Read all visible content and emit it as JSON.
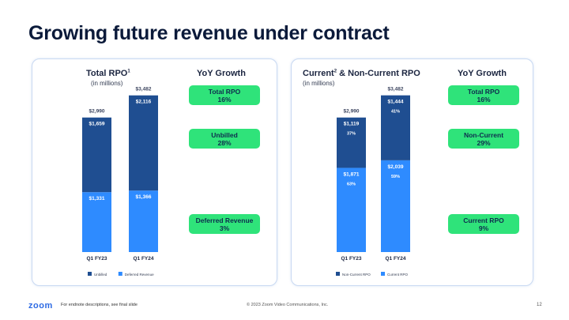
{
  "page": {
    "title": "Growing future revenue under contract",
    "footer_logo": "zoom",
    "footer_note": "For endnote descriptions, see final slide",
    "footer_copyright": "© 2023 Zoom Video Communications, Inc.",
    "page_number": "12"
  },
  "left_panel": {
    "title": "Total RPO",
    "title_sup": "1",
    "subtitle": "(in millions)",
    "yoy_heading": "YoY Growth",
    "pills": [
      {
        "label": "Total RPO",
        "value": "16%"
      },
      {
        "label": "Unbilled",
        "value": "28%"
      },
      {
        "label": "Deferred Revenue",
        "value": "3%"
      }
    ]
  },
  "right_panel": {
    "title_a": "Current",
    "title_sup": "2",
    "title_b": " & Non-Current RPO",
    "subtitle": "(in millions)",
    "yoy_heading": "YoY Growth",
    "pills": [
      {
        "label": "Total RPO",
        "value": "16%"
      },
      {
        "label": "Non-Current",
        "value": "29%"
      },
      {
        "label": "Current RPO",
        "value": "9%"
      }
    ]
  },
  "colors": {
    "dark": "#1f4e91",
    "light": "#2e8bff",
    "pill": "#2fe37a"
  },
  "chart_data": [
    {
      "type": "bar",
      "stacked": true,
      "categories": [
        "Q1 FY23",
        "Q1 FY24"
      ],
      "totals": [
        "$2,990",
        "$3,482"
      ],
      "series": [
        {
          "name": "Deferred Revenue",
          "values": [
            1331,
            1366
          ],
          "labels": [
            "$1,331",
            "$1,366"
          ],
          "color": "#2e8bff",
          "pct": [
            "",
            ""
          ]
        },
        {
          "name": "Unbilled",
          "values": [
            1659,
            2116
          ],
          "labels": [
            "$1,659",
            "$2,116"
          ],
          "color": "#1f4e91",
          "pct": [
            "",
            ""
          ]
        }
      ],
      "legend": "bottom",
      "ylim": [
        0,
        3600
      ]
    },
    {
      "type": "bar",
      "stacked": true,
      "categories": [
        "Q1 FY23",
        "Q1 FY24"
      ],
      "totals": [
        "$2,990",
        "$3,482"
      ],
      "series": [
        {
          "name": "Current RPO",
          "values": [
            1871,
            2039
          ],
          "labels": [
            "$1,871",
            "$2,039"
          ],
          "color": "#2e8bff",
          "pct": [
            "63%",
            "59%"
          ]
        },
        {
          "name": "Non-Current RPO",
          "values": [
            1119,
            1444
          ],
          "labels": [
            "$1,119",
            "$1,444"
          ],
          "color": "#1f4e91",
          "pct": [
            "37%",
            "41%"
          ]
        }
      ],
      "legend_order": [
        "Non-Current RPO",
        "Current RPO"
      ],
      "legend": "bottom",
      "ylim": [
        0,
        3600
      ]
    }
  ]
}
